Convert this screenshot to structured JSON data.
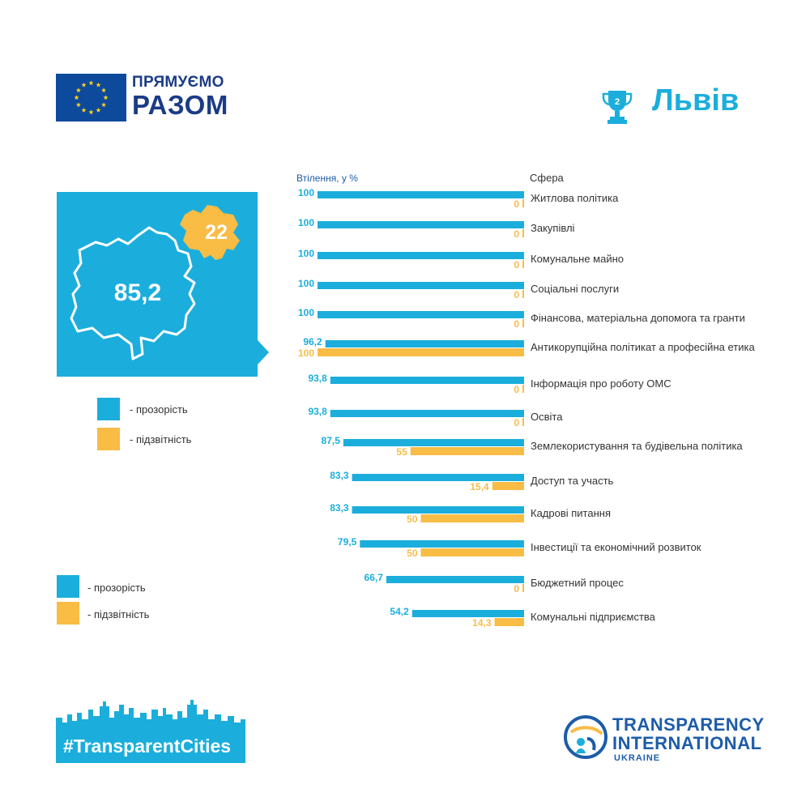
{
  "eu_logo": {
    "line1": "ПРЯМУЄМО",
    "line2": "РАЗОМ"
  },
  "city": {
    "name": "Львів",
    "rank": "2"
  },
  "map": {
    "transparency_score": "85,2",
    "accountability_score": "22"
  },
  "legend": {
    "transparency": "- прозорість",
    "accountability": "- підзвітність"
  },
  "colors": {
    "transparency": "#1BAEDC",
    "accountability": "#F9BC45",
    "eu_blue": "#0E4A9B",
    "ti_blue": "#1D5CA8"
  },
  "chart_data": {
    "type": "bar",
    "orientation": "horizontal",
    "xlabel": "Втілення, у %",
    "category_header": "Сфера",
    "xlim": [
      0,
      100
    ],
    "categories": [
      "Житлова політика",
      "Закупівлі",
      "Комунальне  майно",
      "Соціальні послуги",
      "Фінансова, матеріальна  допомога та гранти",
      "Антикорупційна  політикат а професійна  етика",
      "Інформація  про роботу ОМС",
      "Освіта",
      "Землекористування  та будівельна  політика",
      "Доступ та участь",
      "Кадрові питання",
      "Інвестиції та економічний  розвиток",
      "Бюджетний процес",
      "Комунальні  підприємства"
    ],
    "series": [
      {
        "name": "прозорість",
        "values": [
          100,
          100,
          100,
          100,
          100,
          96.2,
          93.8,
          93.8,
          87.5,
          83.3,
          83.3,
          79.5,
          66.7,
          54.2
        ],
        "labels": [
          "100",
          "100",
          "100",
          "100",
          "100",
          "96,2",
          "93,8",
          "93,8",
          "87,5",
          "83,3",
          "83,3",
          "79,5",
          "66,7",
          "54,2"
        ]
      },
      {
        "name": "підзвітність",
        "values": [
          0,
          0,
          0,
          0,
          0,
          100,
          0,
          0,
          55,
          15.4,
          50,
          50,
          0,
          14.3
        ],
        "labels": [
          "0",
          "0",
          "0",
          "0",
          "0",
          "100",
          "0",
          "0",
          "55",
          "15,4",
          "50",
          "50",
          "0",
          "14,3"
        ]
      }
    ]
  },
  "footer": {
    "hashtag": "#TransparentCities",
    "ti_line1": "TRANSPARENCY",
    "ti_line2": "INTERNATIONAL",
    "ti_line3": "UKRAINE"
  }
}
